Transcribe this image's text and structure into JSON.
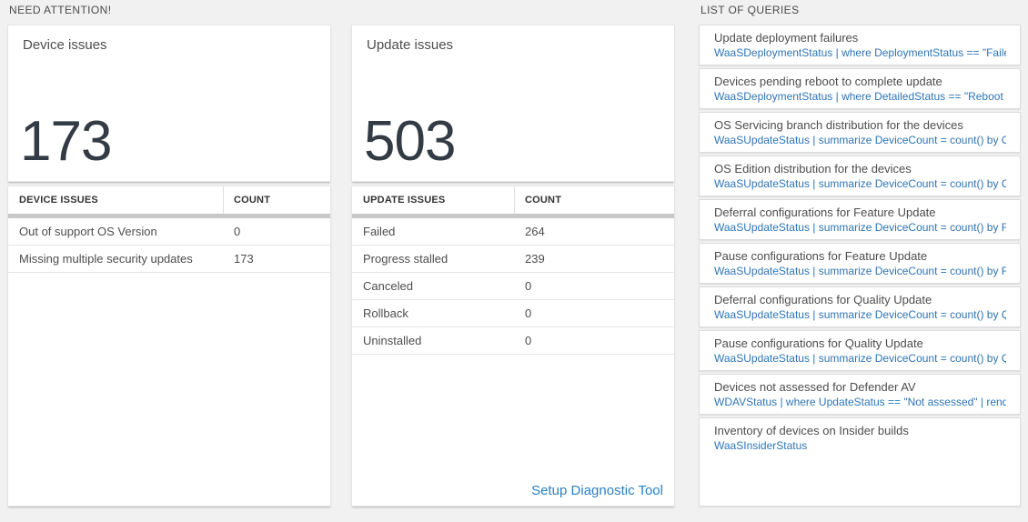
{
  "sections": {
    "need_attention": {
      "label": "NEED ATTENTION!"
    },
    "queries": {
      "label": "LIST OF QUERIES"
    }
  },
  "device_issues": {
    "title": "Device issues",
    "total": "173",
    "table": {
      "columns": [
        "DEVICE ISSUES",
        "COUNT"
      ],
      "rows": [
        {
          "label": "Out of support OS Version",
          "count": "0"
        },
        {
          "label": "Missing multiple security updates",
          "count": "173"
        }
      ]
    }
  },
  "update_issues": {
    "title": "Update issues",
    "total": "503",
    "table": {
      "columns": [
        "UPDATE ISSUES",
        "COUNT"
      ],
      "rows": [
        {
          "label": "Failed",
          "count": "264"
        },
        {
          "label": "Progress stalled",
          "count": "239"
        },
        {
          "label": "Canceled",
          "count": "0"
        },
        {
          "label": "Rollback",
          "count": "0"
        },
        {
          "label": "Uninstalled",
          "count": "0"
        }
      ]
    },
    "footer_link": "Setup Diagnostic Tool"
  },
  "query_list": {
    "items": [
      {
        "title": "Update deployment failures",
        "query": "WaaSDeploymentStatus | where DeploymentStatus == \"Failed\" |..."
      },
      {
        "title": "Devices pending reboot to complete update",
        "query": "WaaSDeploymentStatus | where DetailedStatus == \"Reboot pend..."
      },
      {
        "title": "OS Servicing branch distribution for the devices",
        "query": "WaaSUpdateStatus | summarize DeviceCount = count() by OSSer..."
      },
      {
        "title": "OS Edition distribution for the devices",
        "query": "WaaSUpdateStatus | summarize DeviceCount = count() by OSEdit..."
      },
      {
        "title": "Deferral configurations for Feature Update",
        "query": "WaaSUpdateStatus | summarize DeviceCount = count() by Featur..."
      },
      {
        "title": "Pause configurations for Feature Update",
        "query": "WaaSUpdateStatus | summarize DeviceCount = count() by Featur..."
      },
      {
        "title": "Deferral configurations for Quality Update",
        "query": "WaaSUpdateStatus | summarize DeviceCount = count() by Qualit..."
      },
      {
        "title": "Pause configurations for Quality Update",
        "query": "WaaSUpdateStatus | summarize DeviceCount = count() by Qualit..."
      },
      {
        "title": "Devices not assessed for Defender AV",
        "query": "WDAVStatus | where UpdateStatus == \"Not assessed\" | render ta..."
      },
      {
        "title": "Inventory of devices on Insider builds",
        "query": "WaaSInsiderStatus"
      }
    ]
  },
  "colors": {
    "page_background": "#f1f1f2",
    "card_background": "#ffffff",
    "big_number": "#333b44",
    "link_blue": "#2e75b6",
    "setup_link_blue": "#2a81c4",
    "table_bar_gray": "#c8c8c8"
  }
}
